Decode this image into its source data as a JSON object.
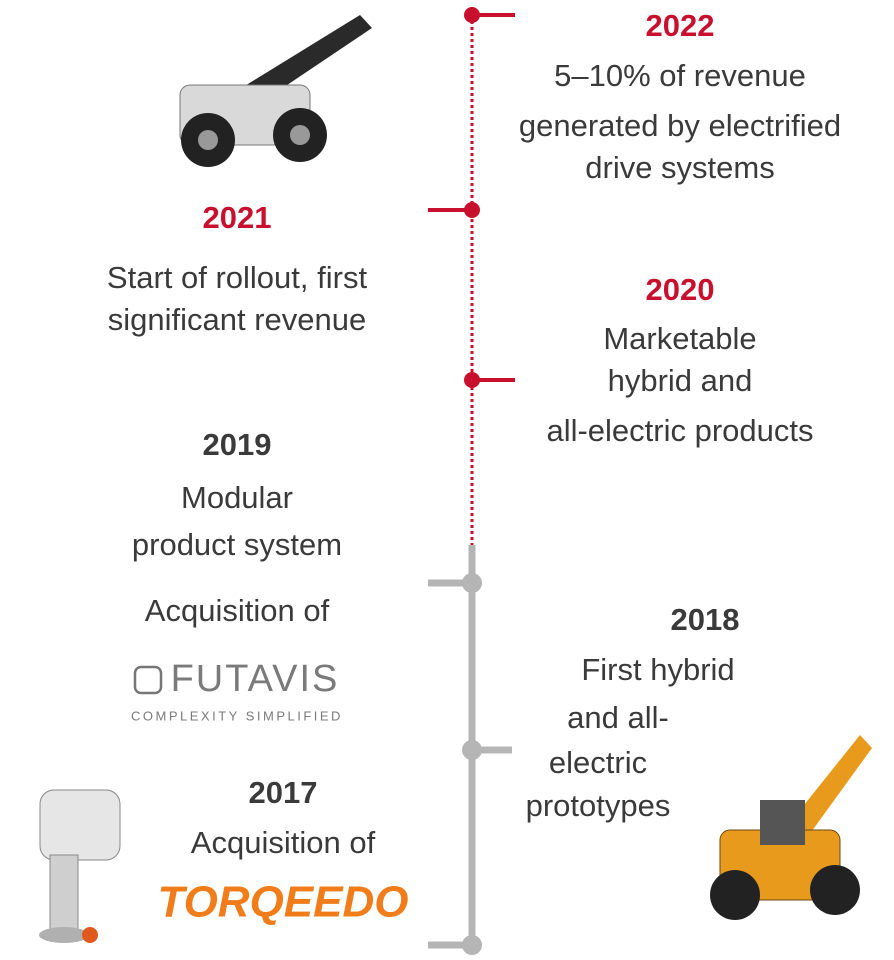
{
  "events": [
    {
      "year": "2022",
      "lines": [
        "5–10% of revenue",
        "generated by electrified",
        "drive systems"
      ]
    },
    {
      "year": "2021",
      "lines": [
        "Start of rollout, first",
        "significant revenue"
      ]
    },
    {
      "year": "2020",
      "lines": [
        "Marketable",
        "hybrid and",
        "all-electric products"
      ]
    },
    {
      "year": "2019",
      "lines": [
        "Modular",
        "product system"
      ]
    },
    {
      "year": "2018",
      "lines": [
        "First hybrid",
        "and all-",
        "electric",
        "prototypes"
      ]
    },
    {
      "year": "2017",
      "lines": [
        "Acquisition of"
      ]
    }
  ],
  "futavis": {
    "intro": "Acquisition of",
    "logo": "FUTAVIS",
    "tagline": "COMPLEXITY SIMPLIFIED"
  },
  "torqeedo": {
    "logo": "TORQEEDO"
  }
}
